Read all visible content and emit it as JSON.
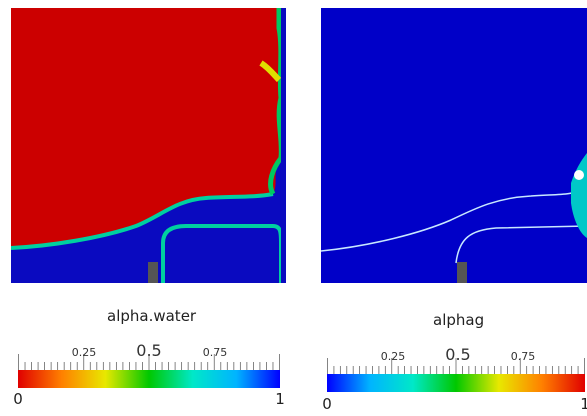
{
  "panels": [
    {
      "field": "alpha.water",
      "colorbar": {
        "labels": [
          "0.25",
          "0.5",
          "0.75"
        ],
        "min_label": "0",
        "max_label": "1",
        "gradient": [
          "#e00000",
          "#ff8000",
          "#e8e800",
          "#00c800",
          "#00e8c8",
          "#00b4ff",
          "#0000ff"
        ]
      }
    },
    {
      "field": "alphag",
      "colorbar": {
        "labels": [
          "0.25",
          "0.5",
          "0.75"
        ],
        "min_label": "0",
        "max_label": "1",
        "gradient": [
          "#0000ff",
          "#00b4ff",
          "#00e8c8",
          "#00c800",
          "#e8e800",
          "#ff8000",
          "#e00000"
        ]
      }
    }
  ],
  "colors": {
    "red": "#cc0000",
    "blue": "#0a0ac0",
    "obstacle": "#555555"
  }
}
